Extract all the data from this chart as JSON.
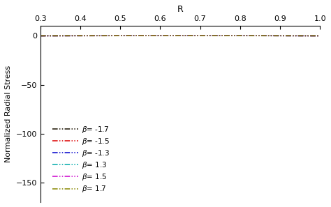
{
  "title": "R",
  "ylabel": "Normalized Radial Stress",
  "xlim": [
    0.3,
    1.0
  ],
  "ylim": [
    -170,
    10
  ],
  "yticks": [
    0,
    -50,
    -100,
    -150
  ],
  "xticks": [
    0.3,
    0.4,
    0.5,
    0.6,
    0.7,
    0.8,
    0.9,
    1.0
  ],
  "series": [
    {
      "beta": -1.7,
      "color": "#1a1200",
      "lw": 1.1
    },
    {
      "beta": -1.5,
      "color": "#dd0000",
      "lw": 1.1
    },
    {
      "beta": -1.3,
      "color": "#0000cc",
      "lw": 1.1
    },
    {
      "beta": 1.3,
      "color": "#00aaaa",
      "lw": 1.1
    },
    {
      "beta": 1.5,
      "color": "#cc00cc",
      "lw": 1.1
    },
    {
      "beta": 1.7,
      "color": "#888800",
      "lw": 1.1
    }
  ],
  "background": "#ffffff",
  "fontsize": 9
}
